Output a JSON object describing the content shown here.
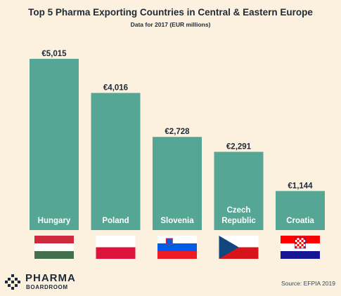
{
  "chart_data": {
    "type": "bar",
    "title": "Top 5 Pharma Exporting Countries in Central & Eastern Europe",
    "subtitle": "Data for 2017 (EUR millions)",
    "categories": [
      [
        "Hungary"
      ],
      [
        "Poland"
      ],
      [
        "Slovenia"
      ],
      [
        "Czech",
        "Republic"
      ],
      [
        "Croatia"
      ]
    ],
    "values": [
      5015,
      4016,
      2728,
      2291,
      1144
    ],
    "value_labels": [
      "€5,015",
      "€4,016",
      "€2,728",
      "€2,291",
      "€1,144"
    ],
    "flags": [
      "hungary-flag",
      "poland-flag",
      "slovenia-flag",
      "czech-flag",
      "croatia-flag"
    ],
    "ylim": [
      0,
      5300
    ],
    "grid": false,
    "colors": {
      "bar": "#55a694",
      "background": "#fbf1de",
      "text": "#1e2a3a",
      "bar_label": "#ffffff"
    }
  },
  "source": "Source: EFPIA 2019",
  "logo": {
    "line1": "PHARMA",
    "line2": "BOARDROOM"
  }
}
